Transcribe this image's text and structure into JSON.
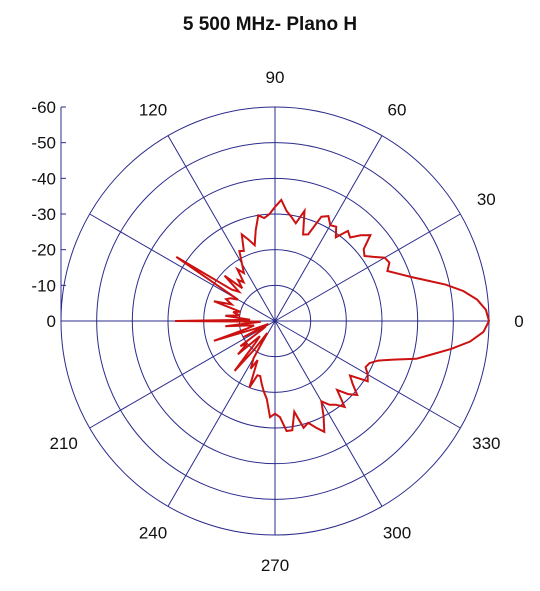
{
  "chart_data": {
    "type": "polar-line",
    "title": "5 500 MHz- Plano H",
    "radial_axis": {
      "range": [
        -60,
        0
      ],
      "ticks": [
        0,
        -10,
        -20,
        -30,
        -40,
        -50,
        -60
      ]
    },
    "angular_axis": {
      "ticks": [
        0,
        30,
        60,
        90,
        120,
        150,
        180,
        210,
        240,
        270,
        300,
        330
      ],
      "labels": [
        "0",
        "30",
        "60",
        "90",
        "120",
        "",
        "",
        "210",
        "240",
        "270",
        "300",
        "330"
      ]
    },
    "grid": true,
    "colors": {
      "grid": "#2b2b8c",
      "series": "#cc1111"
    },
    "series": [
      {
        "theta": [
          0,
          3,
          6,
          9,
          12,
          15,
          18,
          21,
          24,
          27,
          30,
          33,
          36,
          39,
          42,
          45,
          48,
          51,
          54,
          57,
          60,
          63,
          66,
          69,
          72,
          75,
          78,
          81,
          84,
          87,
          90,
          93,
          96,
          99,
          102,
          105,
          108,
          111,
          114,
          117,
          120,
          123,
          126,
          129,
          132,
          135,
          138,
          141,
          144,
          147,
          150,
          153,
          156,
          159,
          162,
          165,
          168,
          171,
          174,
          177,
          180,
          183,
          186,
          189,
          192,
          195,
          198,
          201,
          204,
          207,
          210,
          213,
          216,
          219,
          222,
          225,
          228,
          231,
          234,
          237,
          240,
          243,
          246,
          249,
          252,
          255,
          258,
          261,
          264,
          267,
          270,
          273,
          276,
          279,
          282,
          285,
          288,
          291,
          294,
          297,
          300,
          303,
          306,
          309,
          312,
          315,
          318,
          321,
          324,
          327,
          330,
          333,
          336,
          339,
          342,
          345,
          348,
          351,
          354,
          357
        ],
        "r": [
          0,
          -0.8,
          -3,
          -6.5,
          -11,
          -16,
          -20,
          -23,
          -25.5,
          -24,
          -24.5,
          -27,
          -29,
          -28,
          -24,
          -26,
          -28.5,
          -27.5,
          -31,
          -28.5,
          -29,
          -27,
          -28,
          -34,
          -34.5,
          -28,
          -32,
          -30.5,
          -29,
          -26,
          -28,
          -30,
          -31,
          -30,
          -34,
          -38,
          -36,
          -34,
          -38.5,
          -38,
          -41.5,
          -44,
          -42,
          -46,
          -44.5,
          -47,
          -41,
          -47,
          -45,
          -27,
          -48,
          -46,
          -45,
          -47,
          -42,
          -50,
          -48,
          -50,
          -46,
          -53,
          -32,
          -56,
          -46,
          -52,
          -54,
          -52,
          -42,
          -54,
          -58,
          -50,
          -57,
          -56,
          -48,
          -50,
          -46,
          -54,
          -52,
          -42,
          -50,
          -56,
          -48,
          -45,
          -48,
          -40,
          -44,
          -44,
          -42,
          -40,
          -38,
          -33,
          -34,
          -33,
          -29,
          -29,
          -34,
          -29,
          -30,
          -28,
          -26,
          -30,
          -34,
          -32,
          -31,
          -29,
          -34,
          -31,
          -29,
          -32,
          -34,
          -29,
          -30,
          -31.5,
          -31,
          -29,
          -25,
          -19,
          -15,
          -10,
          -5,
          -1.5
        ]
      }
    ]
  }
}
